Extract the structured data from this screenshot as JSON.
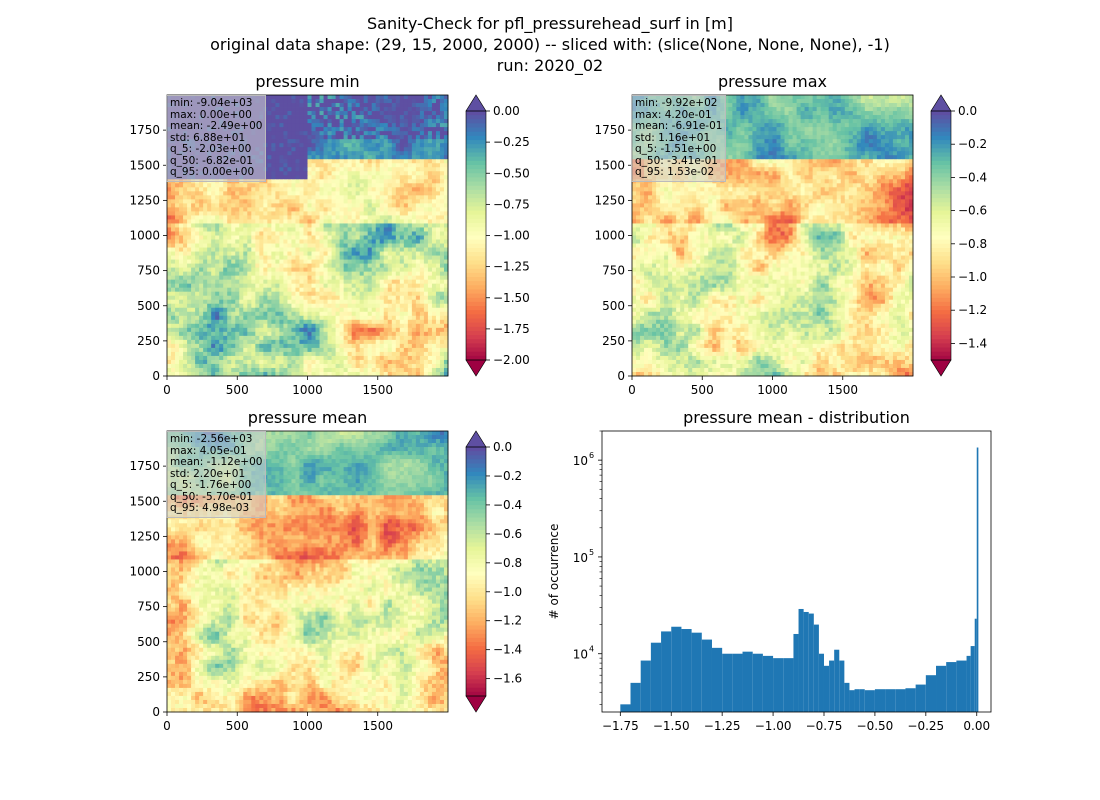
{
  "figure": {
    "title_lines": [
      "Sanity-Check for pfl_pressurehead_surf in [m]",
      "original data shape: (29, 15, 2000, 2000) -- sliced with: (slice(None, None, None), -1)",
      "run: 2020_02"
    ]
  },
  "chart_data": [
    {
      "type": "heatmap",
      "title": "pressure min",
      "colormap": "Spectral",
      "colorbar": {
        "vmin": -2.0,
        "vmax": 0.0,
        "extend": "both",
        "ticks": [
          "0.00",
          "-0.25",
          "-0.50",
          "-0.75",
          "-1.00",
          "-1.25",
          "-1.50",
          "-1.75",
          "-2.00"
        ],
        "tick_values": [
          0,
          -0.25,
          -0.5,
          -0.75,
          -1.0,
          -1.25,
          -1.5,
          -1.75,
          -2.0
        ]
      },
      "xticks": [
        "0",
        "500",
        "1000",
        "1500"
      ],
      "xtick_values": [
        0,
        500,
        1000,
        1500
      ],
      "yticks": [
        "0",
        "250",
        "500",
        "750",
        "1000",
        "1250",
        "1500",
        "1750"
      ],
      "ytick_values": [
        0,
        250,
        500,
        750,
        1000,
        1250,
        1500,
        1750
      ],
      "xlim": [
        0,
        2000
      ],
      "ylim": [
        0,
        2000
      ],
      "stats": [
        "min: -9.04e+03",
        "max: 0.00e+00",
        "mean: -2.49e+00",
        "std: 6.88e+01",
        "q_5: -2.03e+00",
        "q_50: -6.82e-01",
        "q_95: 0.00e+00"
      ]
    },
    {
      "type": "heatmap",
      "title": "pressure max",
      "colormap": "Spectral",
      "colorbar": {
        "vmin": -1.5,
        "vmax": 0.0,
        "extend": "both",
        "ticks": [
          "0.0",
          "-0.2",
          "-0.4",
          "-0.6",
          "-0.8",
          "-1.0",
          "-1.2",
          "-1.4"
        ],
        "tick_values": [
          0,
          -0.2,
          -0.4,
          -0.6,
          -0.8,
          -1.0,
          -1.2,
          -1.4
        ]
      },
      "xticks": [
        "0",
        "500",
        "1000",
        "1500"
      ],
      "xtick_values": [
        0,
        500,
        1000,
        1500
      ],
      "yticks": [
        "0",
        "250",
        "500",
        "750",
        "1000",
        "1250",
        "1500",
        "1750"
      ],
      "ytick_values": [
        0,
        250,
        500,
        750,
        1000,
        1250,
        1500,
        1750
      ],
      "xlim": [
        0,
        2000
      ],
      "ylim": [
        0,
        2000
      ],
      "stats": [
        "min: -9.92e+02",
        "max: 4.20e-01",
        "mean: -6.91e-01",
        "std: 1.16e+01",
        "q_5: -1.51e+00",
        "q_50: -3.41e-01",
        "q_95: 1.53e-02"
      ]
    },
    {
      "type": "heatmap",
      "title": "pressure mean",
      "colormap": "Spectral",
      "colorbar": {
        "vmin": -1.72,
        "vmax": 0.0,
        "extend": "both",
        "ticks": [
          "0.0",
          "-0.2",
          "-0.4",
          "-0.6",
          "-0.8",
          "-1.0",
          "-1.2",
          "-1.4",
          "-1.6"
        ],
        "tick_values": [
          0,
          -0.2,
          -0.4,
          -0.6,
          -0.8,
          -1.0,
          -1.2,
          -1.4,
          -1.6
        ]
      },
      "xticks": [
        "0",
        "500",
        "1000",
        "1500"
      ],
      "xtick_values": [
        0,
        500,
        1000,
        1500
      ],
      "yticks": [
        "0",
        "250",
        "500",
        "750",
        "1000",
        "1250",
        "1500",
        "1750"
      ],
      "ytick_values": [
        0,
        250,
        500,
        750,
        1000,
        1250,
        1500,
        1750
      ],
      "xlim": [
        0,
        2000
      ],
      "ylim": [
        0,
        2000
      ],
      "stats": [
        "min: -2.56e+03",
        "max: 4.05e-01",
        "mean: -1.12e+00",
        "std: 2.20e+01",
        "q_5: -1.76e+00",
        "q_50: -5.70e-01",
        "q_95: 4.98e-03"
      ]
    },
    {
      "type": "bar",
      "subtype": "histogram",
      "title": "pressure mean - distribution",
      "xlabel": "",
      "ylabel": "# of occurrence",
      "yscale": "log",
      "color": "#1f77b4",
      "xlim": [
        -1.84,
        0.07
      ],
      "ylim": [
        2500,
        2000000
      ],
      "xticks": [
        "−1.75",
        "−1.50",
        "−1.25",
        "−1.00",
        "−0.75",
        "−0.50",
        "−0.25",
        "0.00"
      ],
      "xtick_values": [
        -1.75,
        -1.5,
        -1.25,
        -1.0,
        -0.75,
        -0.5,
        -0.25,
        0.0
      ],
      "yticks": [
        "10",
        "10",
        "10"
      ],
      "ytick_exponents": [
        "4",
        "5",
        "6"
      ],
      "ytick_values": [
        10000,
        100000,
        1000000
      ],
      "series": [
        {
          "x": [
            -1.75,
            -1.7,
            -1.65,
            -1.6,
            -1.55,
            -1.5,
            -1.45,
            -1.4,
            -1.35,
            -1.3,
            -1.25,
            -1.2,
            -1.15,
            -1.1,
            -1.05,
            -1.0,
            -0.95,
            -0.9,
            -0.875,
            -0.85,
            -0.825,
            -0.8,
            -0.775,
            -0.75,
            -0.725,
            -0.7,
            -0.675,
            -0.65,
            -0.625,
            -0.6,
            -0.575,
            -0.55,
            -0.5,
            -0.45,
            -0.4,
            -0.35,
            -0.3,
            -0.25,
            -0.2,
            -0.15,
            -0.1,
            -0.05,
            -0.03,
            -0.01,
            0.0
          ],
          "values": [
            3000,
            5000,
            8500,
            13000,
            17000,
            19000,
            18000,
            16500,
            14000,
            11500,
            10000,
            10000,
            10500,
            10000,
            9500,
            9000,
            9000,
            16000,
            29000,
            27000,
            26000,
            20000,
            10000,
            7500,
            8500,
            11000,
            8500,
            5000,
            4200,
            4300,
            4300,
            4200,
            4300,
            4300,
            4300,
            4400,
            4800,
            6000,
            7500,
            8200,
            8500,
            9500,
            12000,
            23000,
            1350000
          ]
        }
      ]
    }
  ]
}
